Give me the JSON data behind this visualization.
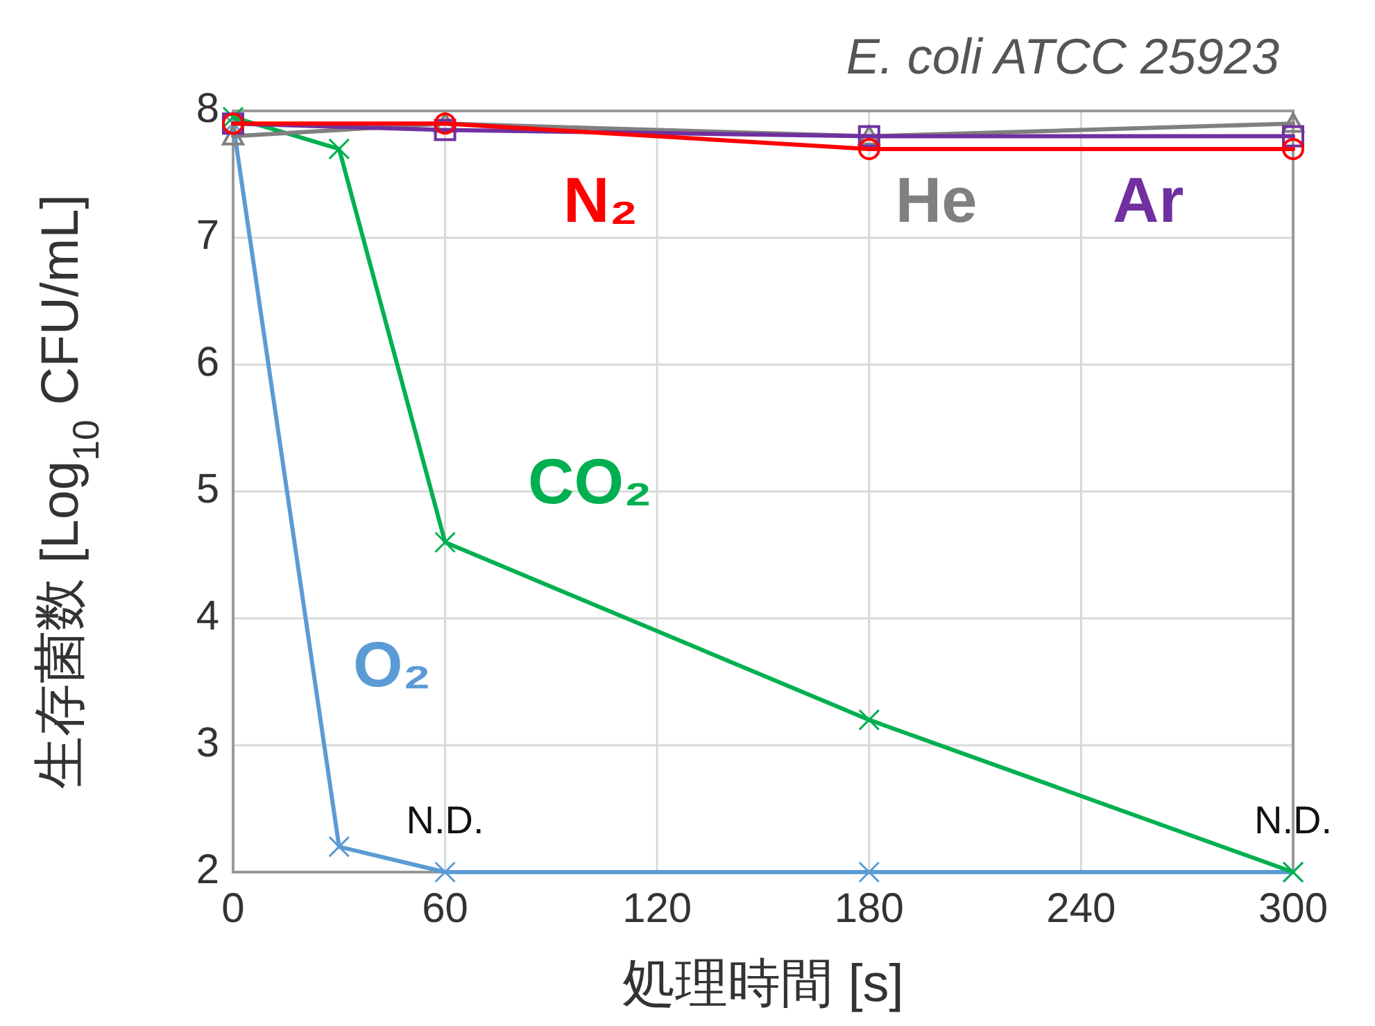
{
  "chart_data": {
    "type": "line",
    "title": "E. coli ATCC 25923",
    "xlabel": "処理時間 [s]",
    "ylabel": "生存菌数 [Log$_{10}$ CFU/mL]",
    "x": [
      0,
      30,
      60,
      180,
      300
    ],
    "series": [
      {
        "name": "O₂",
        "color": "#5b9bd5",
        "marker": "cross",
        "values": [
          7.9,
          2.2,
          2,
          2,
          2
        ]
      },
      {
        "name": "CO₂",
        "color": "#00b050",
        "marker": "cross",
        "values": [
          7.95,
          7.7,
          4.6,
          3.2,
          2
        ]
      },
      {
        "name": "He",
        "color": "#808080",
        "marker": "triangle",
        "x": [
          0,
          60,
          180,
          300
        ],
        "values": [
          7.8,
          7.9,
          7.8,
          7.9
        ]
      },
      {
        "name": "Ar",
        "color": "#7030a0",
        "marker": "square",
        "x": [
          0,
          60,
          180,
          300
        ],
        "values": [
          7.9,
          7.85,
          7.8,
          7.8
        ]
      },
      {
        "name": "N₂",
        "color": "#ff0000",
        "marker": "circle",
        "x": [
          0,
          60,
          180,
          300
        ],
        "values": [
          7.9,
          7.9,
          7.7,
          7.7
        ]
      }
    ],
    "annotations": [
      {
        "text": "N.D.",
        "x": 60,
        "y": 2
      },
      {
        "text": "N.D.",
        "x": 300,
        "y": 2
      }
    ],
    "xlim": [
      0,
      300
    ],
    "xticks": [
      0,
      60,
      120,
      180,
      240,
      300
    ],
    "ylim": [
      2,
      8
    ],
    "yticks": [
      2,
      3,
      4,
      5,
      6,
      7,
      8
    ],
    "grid": true,
    "line_style": "solid"
  }
}
